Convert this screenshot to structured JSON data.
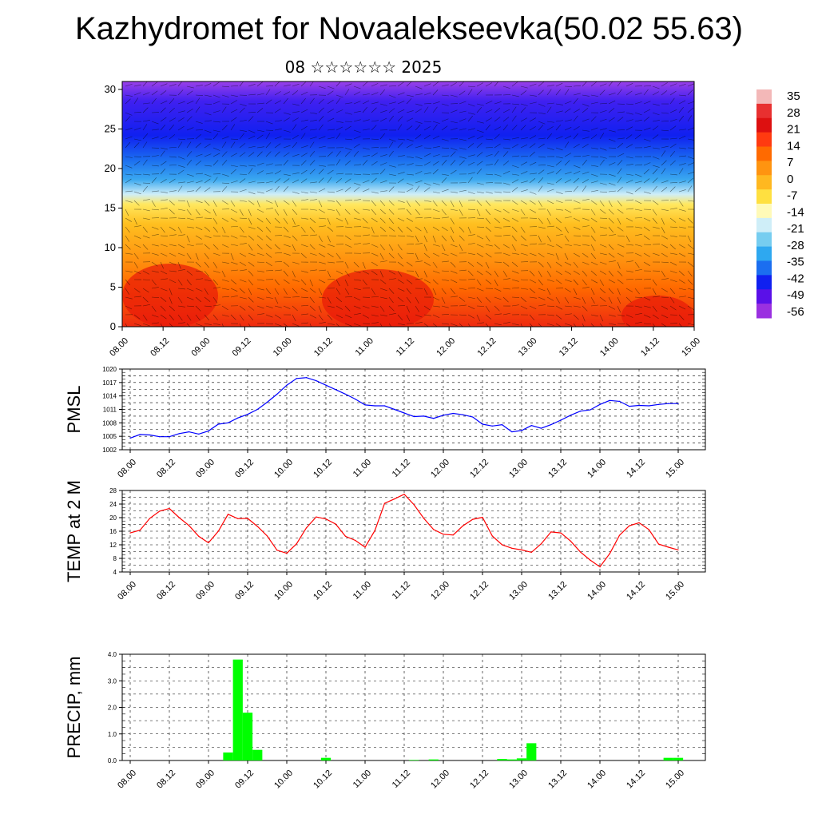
{
  "header": {
    "title": "Kazhydromet for Novaalekseevka(50.02 55.63)",
    "subtitle": "08 ☆☆☆☆☆☆ 2025"
  },
  "colors": {
    "pmsl_line": "#0000ff",
    "temp_line": "#ff0000",
    "precip_bar": "#00ff00",
    "gridline": "#000000"
  },
  "chart_data": [
    {
      "type": "heatmap",
      "title": "",
      "xlabel": "",
      "ylabel": "",
      "x_ticks": [
        "08.00",
        "08.12",
        "09.00",
        "09.12",
        "10.00",
        "10.12",
        "11.00",
        "11.12",
        "12.00",
        "12.12",
        "13.00",
        "13.12",
        "14.00",
        "14.12",
        "15.00"
      ],
      "y_ticks": [
        "0",
        "5",
        "10",
        "15",
        "20",
        "25",
        "30"
      ],
      "ylim": [
        0,
        31
      ],
      "colorbar_labels": [
        "35",
        "28",
        "21",
        "14",
        "7",
        "0",
        "-7",
        "-14",
        "-21",
        "-28",
        "-35",
        "-42",
        "-49",
        "-56"
      ],
      "colorbar_colors": [
        "#f3b8b8",
        "#e83030",
        "#dd1010",
        "#ff3a10",
        "#ff6a00",
        "#ff9410",
        "#ffb820",
        "#ffe040",
        "#fffab8",
        "#cfeef8",
        "#76cdf0",
        "#2ea8f0",
        "#1b6ef0",
        "#1020f0",
        "#5a10e8",
        "#9a30e0"
      ],
      "profile": {
        "heights": [
          0,
          3,
          6,
          9,
          12,
          15,
          17,
          19,
          21,
          23,
          25,
          27,
          29,
          31
        ],
        "temps": [
          22,
          18,
          10,
          3,
          -5,
          -15,
          -24,
          -33,
          -42,
          -50,
          -54,
          -52,
          -50,
          -46
        ]
      },
      "grid": false
    },
    {
      "type": "line",
      "ylabel": "PMSL",
      "x_ticks": [
        "08.00",
        "08.12",
        "09.00",
        "09.12",
        "10.00",
        "10.12",
        "11.00",
        "11.12",
        "12.00",
        "12.12",
        "13.00",
        "13.12",
        "14.00",
        "14.12",
        "15.00"
      ],
      "y_ticks": [
        "1002",
        "1005",
        "1008",
        "1011",
        "1014",
        "1017",
        "1020"
      ],
      "ylim": [
        1002,
        1020
      ],
      "grid": true,
      "series": [
        {
          "x": [
            0,
            3,
            6,
            9,
            12,
            15,
            18,
            21,
            24,
            27,
            30,
            33,
            36,
            39,
            42,
            45,
            48,
            51,
            54,
            57,
            60,
            63,
            66,
            69,
            72,
            75,
            78,
            81,
            84,
            87,
            90,
            93,
            96,
            99,
            102,
            105,
            108,
            111,
            114,
            117,
            120,
            123,
            126,
            129,
            132,
            135,
            138,
            141,
            144,
            147,
            150,
            153,
            156,
            159,
            162,
            165,
            168
          ],
          "values": [
            1004.6,
            1005.4,
            1005.3,
            1004.9,
            1004.9,
            1005.6,
            1006.0,
            1005.5,
            1006.2,
            1007.7,
            1008.0,
            1009.1,
            1009.9,
            1011.0,
            1012.6,
            1014.4,
            1016.4,
            1017.9,
            1018.1,
            1017.4,
            1016.4,
            1015.4,
            1014.4,
            1013.3,
            1012.0,
            1011.8,
            1011.8,
            1011.0,
            1010.2,
            1009.4,
            1009.5,
            1009.0,
            1009.7,
            1010.1,
            1009.8,
            1009.3,
            1007.7,
            1007.3,
            1007.6,
            1006.0,
            1006.3,
            1007.4,
            1006.8,
            1007.6,
            1008.6,
            1009.7,
            1010.6,
            1010.9,
            1012.1,
            1013.0,
            1012.8,
            1011.7,
            1011.9,
            1011.8,
            1012.1,
            1012.3,
            1012.3
          ]
        }
      ]
    },
    {
      "type": "line",
      "ylabel": "TEMP at 2 M",
      "x_ticks": [
        "08.00",
        "08.12",
        "09.00",
        "09.12",
        "10.00",
        "10.12",
        "11.00",
        "11.12",
        "12.00",
        "12.12",
        "13.00",
        "13.12",
        "14.00",
        "14.12",
        "15.00"
      ],
      "y_ticks": [
        "4",
        "8",
        "12",
        "16",
        "20",
        "24",
        "28"
      ],
      "ylim": [
        4,
        28
      ],
      "grid": true,
      "series": [
        {
          "x": [
            0,
            3,
            6,
            9,
            12,
            15,
            18,
            21,
            24,
            27,
            30,
            33,
            36,
            39,
            42,
            45,
            48,
            51,
            54,
            57,
            60,
            63,
            66,
            69,
            72,
            75,
            78,
            81,
            84,
            87,
            90,
            93,
            96,
            99,
            102,
            105,
            108,
            111,
            114,
            117,
            120,
            123,
            126,
            129,
            132,
            135,
            138,
            141,
            144,
            147,
            150,
            153,
            156,
            159,
            162,
            165,
            168
          ],
          "values": [
            15.5,
            16.3,
            19.8,
            21.9,
            22.7,
            20.0,
            17.7,
            14.5,
            12.6,
            16.0,
            21.0,
            19.7,
            19.8,
            17.4,
            14.6,
            10.4,
            9.5,
            12.3,
            17.0,
            20.2,
            19.6,
            18.1,
            14.5,
            13.3,
            11.3,
            16.2,
            24.2,
            25.5,
            26.9,
            23.8,
            19.8,
            16.5,
            15.1,
            14.9,
            17.6,
            19.5,
            20.1,
            14.6,
            12.0,
            11.0,
            10.5,
            9.8,
            12.3,
            15.8,
            15.5,
            13.1,
            9.9,
            7.5,
            5.5,
            9.4,
            14.8,
            17.6,
            18.5,
            16.5,
            12.2,
            11.3,
            10.5
          ]
        }
      ]
    },
    {
      "type": "bar",
      "ylabel": "PRECIP, mm",
      "x_ticks": [
        "08.00",
        "08.12",
        "09.00",
        "09.12",
        "10.00",
        "10.12",
        "11.00",
        "11.12",
        "12.00",
        "12.12",
        "13.00",
        "13.12",
        "14.00",
        "14.12",
        "15.00"
      ],
      "y_ticks": [
        "0.0",
        "1.0",
        "2.0",
        "3.0",
        "4.0"
      ],
      "ylim": [
        0,
        4
      ],
      "grid": true,
      "series": [
        {
          "x": [
            30,
            33,
            36,
            39,
            60,
            87,
            93,
            114,
            117,
            120,
            123,
            165,
            168
          ],
          "values": [
            0.3,
            3.8,
            1.8,
            0.4,
            0.1,
            0.02,
            0.04,
            0.06,
            0.04,
            0.08,
            0.65,
            0.1,
            0.1
          ]
        }
      ]
    }
  ]
}
